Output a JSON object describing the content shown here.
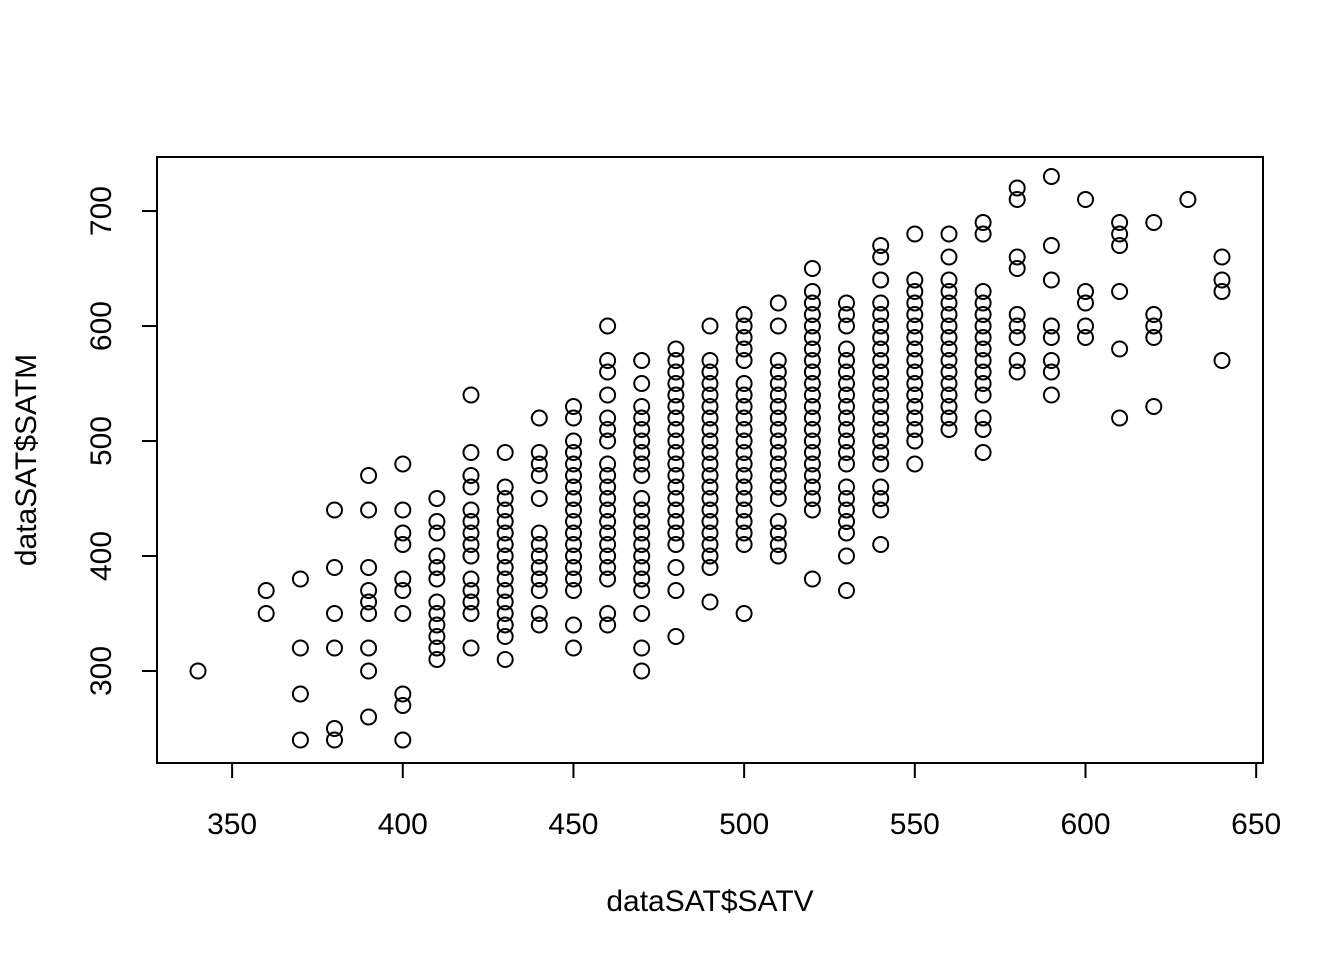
{
  "chart_data": {
    "type": "scatter",
    "title": "",
    "xlabel": "dataSAT$SATV",
    "ylabel": "dataSAT$SATM",
    "xlim": [
      328,
      652
    ],
    "ylim": [
      220,
      747
    ],
    "x_ticks": [
      350,
      400,
      450,
      500,
      550,
      600,
      650
    ],
    "y_ticks": [
      300,
      400,
      500,
      600,
      700
    ],
    "grid": false,
    "legend": "none",
    "marker": "open-circle",
    "color": "#000000",
    "points": [
      [
        340,
        300
      ],
      [
        360,
        370
      ],
      [
        360,
        350
      ],
      [
        370,
        380
      ],
      [
        370,
        320
      ],
      [
        370,
        280
      ],
      [
        370,
        240
      ],
      [
        380,
        440
      ],
      [
        380,
        390
      ],
      [
        380,
        350
      ],
      [
        380,
        320
      ],
      [
        380,
        250
      ],
      [
        380,
        240
      ],
      [
        390,
        470
      ],
      [
        390,
        440
      ],
      [
        390,
        390
      ],
      [
        390,
        370
      ],
      [
        390,
        360
      ],
      [
        390,
        350
      ],
      [
        390,
        320
      ],
      [
        390,
        300
      ],
      [
        390,
        260
      ],
      [
        400,
        480
      ],
      [
        400,
        440
      ],
      [
        400,
        420
      ],
      [
        400,
        410
      ],
      [
        400,
        380
      ],
      [
        400,
        370
      ],
      [
        400,
        350
      ],
      [
        400,
        280
      ],
      [
        400,
        270
      ],
      [
        400,
        240
      ],
      [
        410,
        450
      ],
      [
        410,
        430
      ],
      [
        410,
        420
      ],
      [
        410,
        400
      ],
      [
        410,
        390
      ],
      [
        410,
        380
      ],
      [
        410,
        360
      ],
      [
        410,
        350
      ],
      [
        410,
        340
      ],
      [
        410,
        330
      ],
      [
        410,
        320
      ],
      [
        410,
        310
      ],
      [
        420,
        540
      ],
      [
        420,
        490
      ],
      [
        420,
        470
      ],
      [
        420,
        460
      ],
      [
        420,
        440
      ],
      [
        420,
        430
      ],
      [
        420,
        420
      ],
      [
        420,
        410
      ],
      [
        420,
        400
      ],
      [
        420,
        380
      ],
      [
        420,
        370
      ],
      [
        420,
        360
      ],
      [
        420,
        350
      ],
      [
        420,
        320
      ],
      [
        430,
        490
      ],
      [
        430,
        460
      ],
      [
        430,
        450
      ],
      [
        430,
        440
      ],
      [
        430,
        430
      ],
      [
        430,
        420
      ],
      [
        430,
        410
      ],
      [
        430,
        400
      ],
      [
        430,
        390
      ],
      [
        430,
        380
      ],
      [
        430,
        370
      ],
      [
        430,
        360
      ],
      [
        430,
        350
      ],
      [
        430,
        340
      ],
      [
        430,
        330
      ],
      [
        430,
        310
      ],
      [
        440,
        520
      ],
      [
        440,
        490
      ],
      [
        440,
        480
      ],
      [
        440,
        470
      ],
      [
        440,
        450
      ],
      [
        440,
        420
      ],
      [
        440,
        410
      ],
      [
        440,
        400
      ],
      [
        440,
        390
      ],
      [
        440,
        380
      ],
      [
        440,
        370
      ],
      [
        440,
        350
      ],
      [
        440,
        340
      ],
      [
        450,
        530
      ],
      [
        450,
        520
      ],
      [
        450,
        500
      ],
      [
        450,
        490
      ],
      [
        450,
        480
      ],
      [
        450,
        470
      ],
      [
        450,
        460
      ],
      [
        450,
        450
      ],
      [
        450,
        440
      ],
      [
        450,
        430
      ],
      [
        450,
        420
      ],
      [
        450,
        410
      ],
      [
        450,
        400
      ],
      [
        450,
        390
      ],
      [
        450,
        380
      ],
      [
        450,
        370
      ],
      [
        450,
        340
      ],
      [
        450,
        320
      ],
      [
        460,
        600
      ],
      [
        460,
        570
      ],
      [
        460,
        560
      ],
      [
        460,
        540
      ],
      [
        460,
        520
      ],
      [
        460,
        510
      ],
      [
        460,
        500
      ],
      [
        460,
        480
      ],
      [
        460,
        470
      ],
      [
        460,
        460
      ],
      [
        460,
        450
      ],
      [
        460,
        440
      ],
      [
        460,
        430
      ],
      [
        460,
        420
      ],
      [
        460,
        410
      ],
      [
        460,
        400
      ],
      [
        460,
        390
      ],
      [
        460,
        380
      ],
      [
        460,
        350
      ],
      [
        460,
        340
      ],
      [
        470,
        570
      ],
      [
        470,
        550
      ],
      [
        470,
        530
      ],
      [
        470,
        520
      ],
      [
        470,
        510
      ],
      [
        470,
        500
      ],
      [
        470,
        490
      ],
      [
        470,
        480
      ],
      [
        470,
        470
      ],
      [
        470,
        450
      ],
      [
        470,
        440
      ],
      [
        470,
        430
      ],
      [
        470,
        420
      ],
      [
        470,
        410
      ],
      [
        470,
        400
      ],
      [
        470,
        390
      ],
      [
        470,
        380
      ],
      [
        470,
        370
      ],
      [
        470,
        350
      ],
      [
        470,
        320
      ],
      [
        470,
        300
      ],
      [
        480,
        580
      ],
      [
        480,
        570
      ],
      [
        480,
        560
      ],
      [
        480,
        550
      ],
      [
        480,
        540
      ],
      [
        480,
        530
      ],
      [
        480,
        520
      ],
      [
        480,
        510
      ],
      [
        480,
        500
      ],
      [
        480,
        490
      ],
      [
        480,
        480
      ],
      [
        480,
        470
      ],
      [
        480,
        460
      ],
      [
        480,
        450
      ],
      [
        480,
        440
      ],
      [
        480,
        430
      ],
      [
        480,
        420
      ],
      [
        480,
        410
      ],
      [
        480,
        390
      ],
      [
        480,
        370
      ],
      [
        480,
        330
      ],
      [
        490,
        600
      ],
      [
        490,
        570
      ],
      [
        490,
        560
      ],
      [
        490,
        550
      ],
      [
        490,
        540
      ],
      [
        490,
        530
      ],
      [
        490,
        520
      ],
      [
        490,
        510
      ],
      [
        490,
        500
      ],
      [
        490,
        490
      ],
      [
        490,
        480
      ],
      [
        490,
        470
      ],
      [
        490,
        460
      ],
      [
        490,
        450
      ],
      [
        490,
        440
      ],
      [
        490,
        430
      ],
      [
        490,
        420
      ],
      [
        490,
        410
      ],
      [
        490,
        400
      ],
      [
        490,
        390
      ],
      [
        490,
        360
      ],
      [
        500,
        610
      ],
      [
        500,
        600
      ],
      [
        500,
        590
      ],
      [
        500,
        580
      ],
      [
        500,
        570
      ],
      [
        500,
        550
      ],
      [
        500,
        540
      ],
      [
        500,
        530
      ],
      [
        500,
        520
      ],
      [
        500,
        510
      ],
      [
        500,
        500
      ],
      [
        500,
        490
      ],
      [
        500,
        480
      ],
      [
        500,
        470
      ],
      [
        500,
        460
      ],
      [
        500,
        450
      ],
      [
        500,
        440
      ],
      [
        500,
        430
      ],
      [
        500,
        420
      ],
      [
        500,
        410
      ],
      [
        500,
        350
      ],
      [
        510,
        620
      ],
      [
        510,
        600
      ],
      [
        510,
        570
      ],
      [
        510,
        560
      ],
      [
        510,
        550
      ],
      [
        510,
        540
      ],
      [
        510,
        530
      ],
      [
        510,
        520
      ],
      [
        510,
        510
      ],
      [
        510,
        500
      ],
      [
        510,
        490
      ],
      [
        510,
        480
      ],
      [
        510,
        470
      ],
      [
        510,
        460
      ],
      [
        510,
        450
      ],
      [
        510,
        430
      ],
      [
        510,
        420
      ],
      [
        510,
        410
      ],
      [
        510,
        400
      ],
      [
        520,
        650
      ],
      [
        520,
        630
      ],
      [
        520,
        620
      ],
      [
        520,
        610
      ],
      [
        520,
        600
      ],
      [
        520,
        590
      ],
      [
        520,
        580
      ],
      [
        520,
        570
      ],
      [
        520,
        560
      ],
      [
        520,
        550
      ],
      [
        520,
        540
      ],
      [
        520,
        530
      ],
      [
        520,
        520
      ],
      [
        520,
        510
      ],
      [
        520,
        500
      ],
      [
        520,
        490
      ],
      [
        520,
        480
      ],
      [
        520,
        470
      ],
      [
        520,
        460
      ],
      [
        520,
        450
      ],
      [
        520,
        440
      ],
      [
        520,
        380
      ],
      [
        530,
        620
      ],
      [
        530,
        610
      ],
      [
        530,
        600
      ],
      [
        530,
        580
      ],
      [
        530,
        570
      ],
      [
        530,
        560
      ],
      [
        530,
        550
      ],
      [
        530,
        540
      ],
      [
        530,
        530
      ],
      [
        530,
        520
      ],
      [
        530,
        510
      ],
      [
        530,
        500
      ],
      [
        530,
        490
      ],
      [
        530,
        480
      ],
      [
        530,
        460
      ],
      [
        530,
        450
      ],
      [
        530,
        440
      ],
      [
        530,
        430
      ],
      [
        530,
        420
      ],
      [
        530,
        400
      ],
      [
        530,
        370
      ],
      [
        540,
        670
      ],
      [
        540,
        660
      ],
      [
        540,
        640
      ],
      [
        540,
        620
      ],
      [
        540,
        610
      ],
      [
        540,
        600
      ],
      [
        540,
        590
      ],
      [
        540,
        580
      ],
      [
        540,
        570
      ],
      [
        540,
        560
      ],
      [
        540,
        550
      ],
      [
        540,
        540
      ],
      [
        540,
        530
      ],
      [
        540,
        520
      ],
      [
        540,
        510
      ],
      [
        540,
        500
      ],
      [
        540,
        490
      ],
      [
        540,
        480
      ],
      [
        540,
        460
      ],
      [
        540,
        450
      ],
      [
        540,
        440
      ],
      [
        540,
        410
      ],
      [
        550,
        680
      ],
      [
        550,
        640
      ],
      [
        550,
        630
      ],
      [
        550,
        620
      ],
      [
        550,
        610
      ],
      [
        550,
        600
      ],
      [
        550,
        590
      ],
      [
        550,
        580
      ],
      [
        550,
        570
      ],
      [
        550,
        560
      ],
      [
        550,
        550
      ],
      [
        550,
        540
      ],
      [
        550,
        530
      ],
      [
        550,
        520
      ],
      [
        550,
        510
      ],
      [
        550,
        500
      ],
      [
        550,
        480
      ],
      [
        560,
        680
      ],
      [
        560,
        660
      ],
      [
        560,
        640
      ],
      [
        560,
        630
      ],
      [
        560,
        620
      ],
      [
        560,
        610
      ],
      [
        560,
        600
      ],
      [
        560,
        590
      ],
      [
        560,
        580
      ],
      [
        560,
        570
      ],
      [
        560,
        560
      ],
      [
        560,
        550
      ],
      [
        560,
        540
      ],
      [
        560,
        530
      ],
      [
        560,
        520
      ],
      [
        560,
        510
      ],
      [
        570,
        690
      ],
      [
        570,
        680
      ],
      [
        570,
        630
      ],
      [
        570,
        620
      ],
      [
        570,
        610
      ],
      [
        570,
        600
      ],
      [
        570,
        590
      ],
      [
        570,
        580
      ],
      [
        570,
        570
      ],
      [
        570,
        560
      ],
      [
        570,
        550
      ],
      [
        570,
        540
      ],
      [
        570,
        520
      ],
      [
        570,
        510
      ],
      [
        570,
        490
      ],
      [
        580,
        720
      ],
      [
        580,
        710
      ],
      [
        580,
        660
      ],
      [
        580,
        650
      ],
      [
        580,
        610
      ],
      [
        580,
        600
      ],
      [
        580,
        590
      ],
      [
        580,
        570
      ],
      [
        580,
        560
      ],
      [
        590,
        730
      ],
      [
        590,
        670
      ],
      [
        590,
        640
      ],
      [
        590,
        600
      ],
      [
        590,
        590
      ],
      [
        590,
        570
      ],
      [
        590,
        560
      ],
      [
        590,
        540
      ],
      [
        600,
        710
      ],
      [
        600,
        630
      ],
      [
        600,
        620
      ],
      [
        600,
        600
      ],
      [
        600,
        590
      ],
      [
        610,
        690
      ],
      [
        610,
        680
      ],
      [
        610,
        670
      ],
      [
        610,
        630
      ],
      [
        610,
        580
      ],
      [
        610,
        520
      ],
      [
        620,
        690
      ],
      [
        620,
        610
      ],
      [
        620,
        600
      ],
      [
        620,
        590
      ],
      [
        620,
        530
      ],
      [
        630,
        710
      ],
      [
        640,
        660
      ],
      [
        640,
        640
      ],
      [
        640,
        630
      ],
      [
        640,
        570
      ]
    ]
  }
}
